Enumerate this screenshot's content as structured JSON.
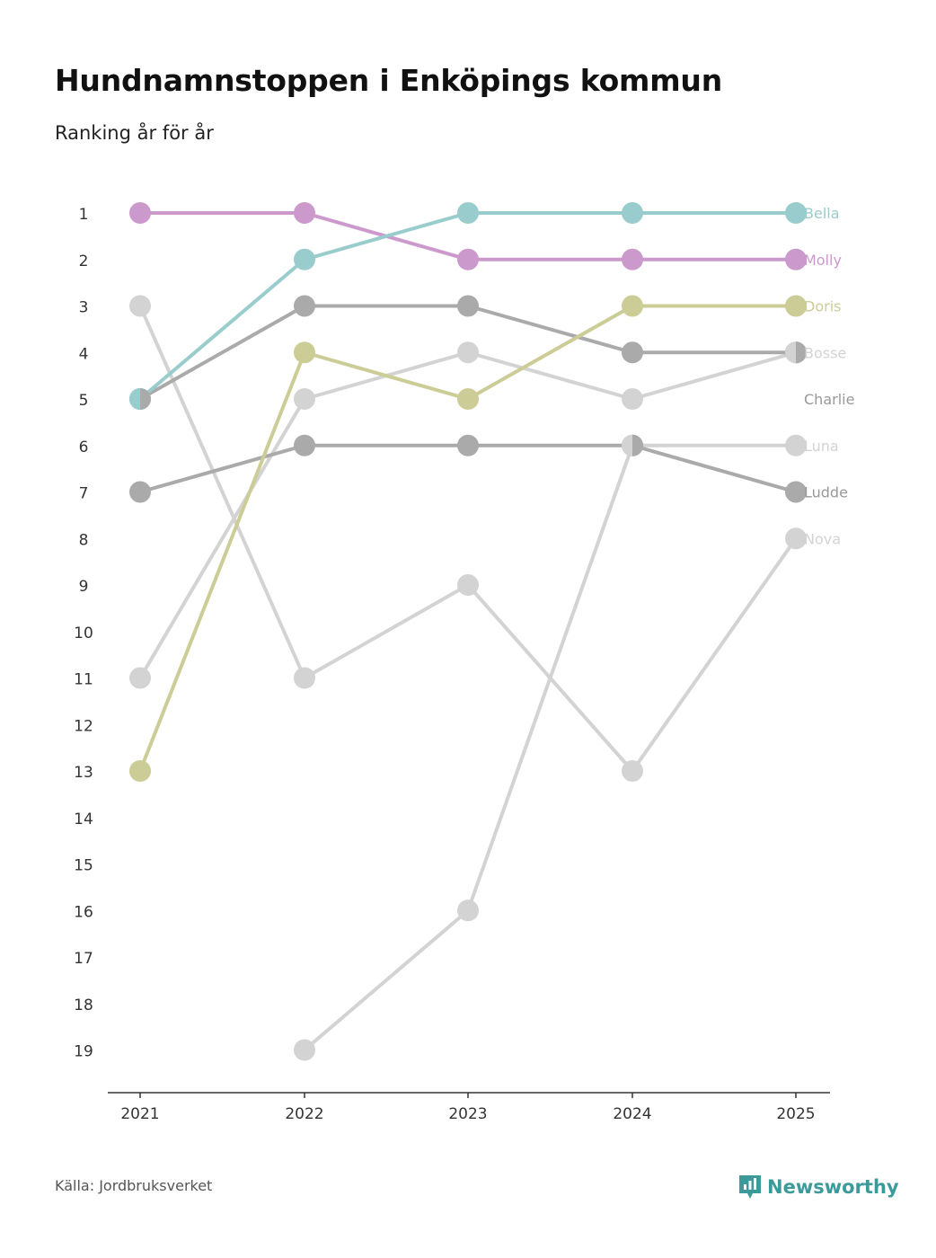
{
  "title": "Hundnamnstoppen i Enköpings kommun",
  "subtitle": "Ranking år för år",
  "source": "Källa: Jordbruksverket",
  "brand": "Newsworthy",
  "colors": {
    "brand": "#3d9a9b",
    "axis": "#333333",
    "tick_text": "#333333"
  },
  "chart_data": {
    "type": "line",
    "x": [
      "2021",
      "2022",
      "2023",
      "2024",
      "2025"
    ],
    "y_ticks": [
      "1",
      "2",
      "3",
      "4",
      "5",
      "6",
      "7",
      "8",
      "9",
      "10",
      "11",
      "12",
      "13",
      "14",
      "15",
      "16",
      "17",
      "18",
      "19"
    ],
    "ylim": [
      1,
      19
    ],
    "y_inverted": true,
    "series": [
      {
        "name": "Charlie",
        "color": "#aaaaaa",
        "values": [
          null,
          null,
          null,
          null,
          null
        ]
      },
      {
        "name": "Nova",
        "color": "#d3d3d3",
        "values": [
          3,
          11,
          9,
          13,
          8
        ]
      },
      {
        "name": "Luna",
        "color": "#d3d3d3",
        "values": [
          null,
          19,
          16,
          6,
          6
        ]
      },
      {
        "name": "Bosse",
        "color": "#d3d3d3",
        "values": [
          11,
          5,
          4,
          5,
          4
        ]
      },
      {
        "name": "Ludde",
        "color": "#aaaaaa",
        "values": [
          7,
          6,
          6,
          6,
          7
        ]
      },
      {
        "name": "Charlie-line",
        "color": "#aaaaaa",
        "values": [
          5,
          3,
          3,
          4,
          4
        ]
      },
      {
        "name": "Doris",
        "color": "#cccc96",
        "values": [
          13,
          4,
          5,
          3,
          3
        ]
      },
      {
        "name": "Molly",
        "color": "#cc99cc",
        "values": [
          1,
          1,
          2,
          2,
          2
        ]
      },
      {
        "name": "Bella",
        "color": "#99cccc",
        "values": [
          5,
          2,
          1,
          1,
          1
        ]
      }
    ],
    "end_labels": [
      {
        "name": "Bella",
        "rank": 1,
        "color": "#99cccc"
      },
      {
        "name": "Molly",
        "rank": 2,
        "color": "#cc99cc"
      },
      {
        "name": "Doris",
        "rank": 3,
        "color": "#cccc96"
      },
      {
        "name": "Bosse",
        "rank": 4,
        "color": "#d3d3d3"
      },
      {
        "name": "Charlie",
        "rank": 5,
        "color": "#999999"
      },
      {
        "name": "Luna",
        "rank": 6,
        "color": "#d3d3d3"
      },
      {
        "name": "Ludde",
        "rank": 7,
        "color": "#999999"
      },
      {
        "name": "Nova",
        "rank": 8,
        "color": "#d3d3d3"
      }
    ],
    "split_markers": [
      {
        "year_index": 0,
        "rank": 5,
        "left_color": "#99cccc",
        "right_color": "#aaaaaa"
      },
      {
        "year_index": 3,
        "rank": 6,
        "left_color": "#d3d3d3",
        "right_color": "#aaaaaa"
      },
      {
        "year_index": 4,
        "rank": 4,
        "left_color": "#d3d3d3",
        "right_color": "#aaaaaa"
      }
    ]
  }
}
